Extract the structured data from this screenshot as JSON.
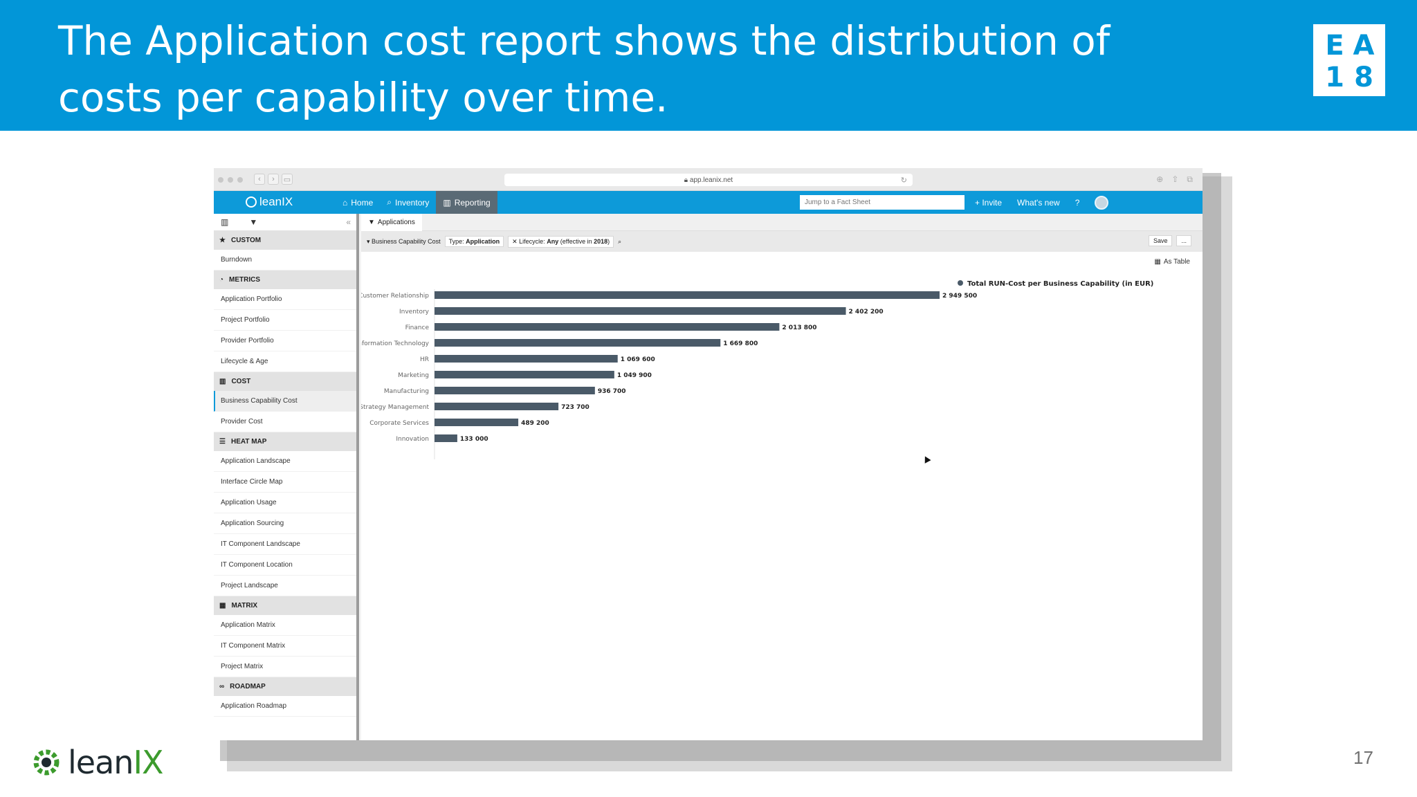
{
  "slide": {
    "title": "The Application cost report shows the distribution of costs per capability over time.",
    "logo_letters": [
      "E",
      "A",
      "1",
      "8"
    ],
    "footer_brand_prefix": "lean",
    "footer_brand_suffix": "IX",
    "page_number": "17"
  },
  "browser": {
    "url": "app.leanix.net"
  },
  "app": {
    "brand": "leanIX",
    "nav": [
      {
        "label": "Home",
        "icon": "home-icon"
      },
      {
        "label": "Inventory",
        "icon": "search-icon"
      },
      {
        "label": "Reporting",
        "icon": "bar-chart-icon",
        "active": true
      }
    ],
    "search_placeholder": "Jump to a Fact Sheet",
    "invite_label": "+ Invite",
    "whats_new_label": "What's new",
    "help_label": "?"
  },
  "sidebar": {
    "sections": [
      {
        "title": "CUSTOM",
        "icon": "star-icon",
        "items": [
          "Burndown"
        ]
      },
      {
        "title": "METRICS",
        "icon": "dashboard-icon",
        "items": [
          "Application Portfolio",
          "Project Portfolio",
          "Provider Portfolio",
          "Lifecycle & Age"
        ]
      },
      {
        "title": "COST",
        "icon": "bar-chart-icon",
        "items": [
          "Business Capability Cost",
          "Provider Cost"
        ]
      },
      {
        "title": "HEAT MAP",
        "icon": "list-icon",
        "items": [
          "Application Landscape",
          "Interface Circle Map",
          "Application Usage",
          "Application Sourcing",
          "IT Component Landscape",
          "IT Component Location",
          "Project Landscape"
        ]
      },
      {
        "title": "MATRIX",
        "icon": "grid-icon",
        "items": [
          "Application Matrix",
          "IT Component Matrix",
          "Project Matrix"
        ]
      },
      {
        "title": "ROADMAP",
        "icon": "binoculars-icon",
        "items": [
          "Application Roadmap"
        ]
      }
    ],
    "active_item": "Business Capability Cost"
  },
  "main": {
    "tab_label": "Applications",
    "report_name": "Business Capability Cost",
    "type_filter_label": "Type:",
    "type_filter_value": "Application",
    "lifecycle_filter_label": "Lifecycle:",
    "lifecycle_filter_value": "Any",
    "lifecycle_filter_suffix": "(effective in",
    "lifecycle_filter_year": "2018",
    "save_label": "Save",
    "more_label": "...",
    "as_table_label": "As Table"
  },
  "chart_data": {
    "type": "bar",
    "orientation": "horizontal",
    "legend": "Total RUN-Cost per Business Capability (in EUR)",
    "legend_position": "top-right",
    "categories": [
      "Customer Relationship",
      "Inventory",
      "Finance",
      "Information Technology",
      "HR",
      "Marketing",
      "Manufacturing",
      "Strategy Management",
      "Corporate Services",
      "Innovation"
    ],
    "values": [
      2949500,
      2402200,
      2013800,
      1669800,
      1069600,
      1049900,
      936700,
      723700,
      489200,
      133000
    ],
    "value_labels": [
      "2 949 500",
      "2 402 200",
      "2 013 800",
      "1 669 800",
      "1 069 600",
      "1 049 900",
      "936 700",
      "723 700",
      "489 200",
      "133 000"
    ],
    "xlim": [
      0,
      2949500
    ],
    "bar_color": "#4a5a68",
    "grid": false
  },
  "colors": {
    "slide_header": "#0296d8",
    "app_bar": "#0d9ad9",
    "bar": "#4a5a68",
    "brand_green": "#3c9b2d"
  }
}
